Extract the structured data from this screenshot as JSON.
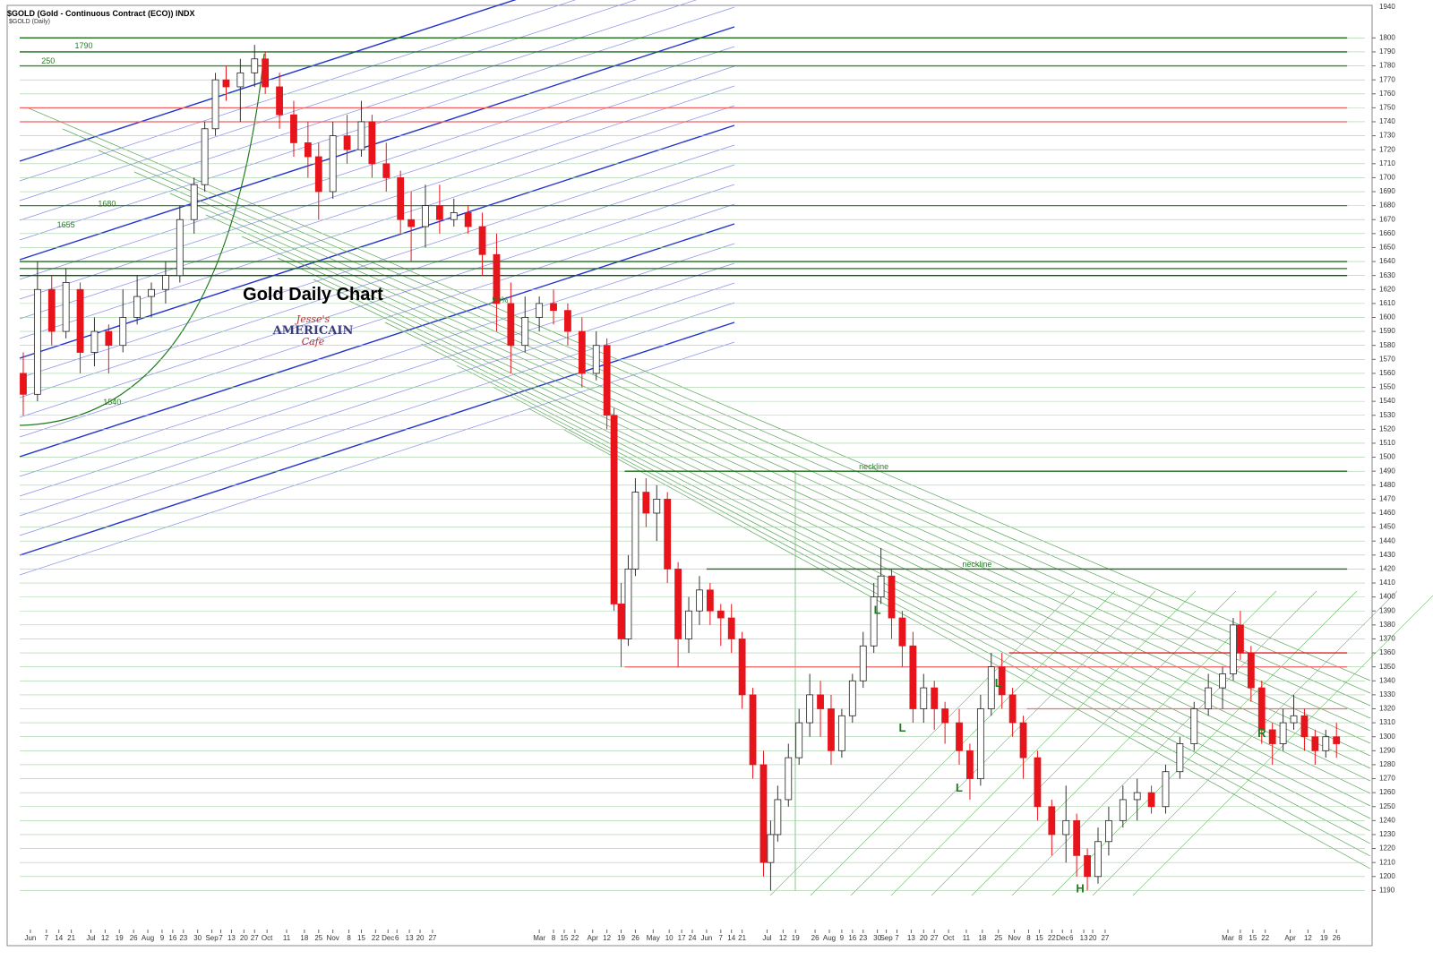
{
  "chart_data": {
    "type": "candlestick",
    "title": "Gold Daily Chart",
    "header": "$GOLD (Gold - Continuous Contract (ECO)) INDX",
    "subheader": "$GOLD (Daily)",
    "axis_top_label": "1940",
    "logo": [
      "Jesse's",
      "AMERICAIN",
      "Cafe"
    ],
    "up_color": "#ffffff",
    "down_color": "#e8141c",
    "xlim": [
      0,
      378
    ],
    "ylim": [
      1180,
      1822
    ],
    "yticks": [
      1190,
      1200,
      1210,
      1220,
      1230,
      1240,
      1250,
      1260,
      1270,
      1280,
      1290,
      1300,
      1310,
      1320,
      1330,
      1340,
      1350,
      1360,
      1370,
      1380,
      1390,
      1400,
      1410,
      1420,
      1430,
      1440,
      1450,
      1460,
      1470,
      1480,
      1490,
      1500,
      1510,
      1520,
      1530,
      1540,
      1550,
      1560,
      1570,
      1580,
      1590,
      1600,
      1610,
      1620,
      1630,
      1640,
      1650,
      1660,
      1670,
      1680,
      1690,
      1700,
      1710,
      1720,
      1730,
      1740,
      1750,
      1760,
      1770,
      1780,
      1790,
      1800
    ],
    "grid": true,
    "grid_color": "#9fd09f",
    "xticks": [
      {
        "value": 3,
        "label": "Jun"
      },
      {
        "value": 7.5,
        "label": "7"
      },
      {
        "value": 11,
        "label": "14"
      },
      {
        "value": 14.5,
        "label": "21"
      },
      {
        "value": 20,
        "label": "Jul"
      },
      {
        "value": 24,
        "label": "12"
      },
      {
        "value": 28,
        "label": "19"
      },
      {
        "value": 32,
        "label": "26"
      },
      {
        "value": 36,
        "label": "Aug"
      },
      {
        "value": 40,
        "label": "9"
      },
      {
        "value": 43,
        "label": "16"
      },
      {
        "value": 46,
        "label": "23"
      },
      {
        "value": 50,
        "label": "30"
      },
      {
        "value": 54,
        "label": "Sep"
      },
      {
        "value": 56.5,
        "label": "7"
      },
      {
        "value": 59.5,
        "label": "13"
      },
      {
        "value": 63,
        "label": "20"
      },
      {
        "value": 66,
        "label": "27"
      },
      {
        "value": 69.5,
        "label": "Oct"
      },
      {
        "value": 75,
        "label": "11"
      },
      {
        "value": 80,
        "label": "18"
      },
      {
        "value": 84,
        "label": "25"
      },
      {
        "value": 88,
        "label": "Nov"
      },
      {
        "value": 92.5,
        "label": "8"
      },
      {
        "value": 96,
        "label": "15"
      },
      {
        "value": 100,
        "label": "22"
      },
      {
        "value": 103.5,
        "label": "Dec"
      },
      {
        "value": 106,
        "label": "6"
      },
      {
        "value": 109.5,
        "label": "13"
      },
      {
        "value": 112.5,
        "label": "20"
      },
      {
        "value": 116,
        "label": "27"
      },
      {
        "value": 146,
        "label": "Mar"
      },
      {
        "value": 150,
        "label": "8"
      },
      {
        "value": 153,
        "label": "15"
      },
      {
        "value": 156,
        "label": "22"
      },
      {
        "value": 161,
        "label": "Apr"
      },
      {
        "value": 165,
        "label": "12"
      },
      {
        "value": 169,
        "label": "19"
      },
      {
        "value": 173,
        "label": "26"
      },
      {
        "value": 178,
        "label": "May"
      },
      {
        "value": 182.5,
        "label": "10"
      },
      {
        "value": 186,
        "label": "17"
      },
      {
        "value": 189,
        "label": "24"
      },
      {
        "value": 193,
        "label": "Jun"
      },
      {
        "value": 197,
        "label": "7"
      },
      {
        "value": 200,
        "label": "14"
      },
      {
        "value": 203,
        "label": "21"
      },
      {
        "value": 210,
        "label": "Jul"
      },
      {
        "value": 214.5,
        "label": "12"
      },
      {
        "value": 218,
        "label": "19"
      },
      {
        "value": 223.5,
        "label": "26"
      },
      {
        "value": 227.5,
        "label": "Aug"
      },
      {
        "value": 231,
        "label": "9"
      },
      {
        "value": 234,
        "label": "16"
      },
      {
        "value": 237,
        "label": "23"
      },
      {
        "value": 241,
        "label": "30"
      },
      {
        "value": 243.5,
        "label": "Sep"
      },
      {
        "value": 246.5,
        "label": "7"
      },
      {
        "value": 250.5,
        "label": "13"
      },
      {
        "value": 254,
        "label": "20"
      },
      {
        "value": 257,
        "label": "27"
      },
      {
        "value": 261,
        "label": "Oct"
      },
      {
        "value": 266,
        "label": "11"
      },
      {
        "value": 270.5,
        "label": "18"
      },
      {
        "value": 275,
        "label": "25"
      },
      {
        "value": 279.5,
        "label": "Nov"
      },
      {
        "value": 283.5,
        "label": "8"
      },
      {
        "value": 286.5,
        "label": "15"
      },
      {
        "value": 290,
        "label": "22"
      },
      {
        "value": 293,
        "label": "Dec"
      },
      {
        "value": 295.5,
        "label": "6"
      },
      {
        "value": 299,
        "label": "13"
      },
      {
        "value": 301.5,
        "label": "20"
      },
      {
        "value": 305,
        "label": "27"
      },
      {
        "value": 339.5,
        "label": "Mar"
      },
      {
        "value": 343,
        "label": "8"
      },
      {
        "value": 346.5,
        "label": "15"
      },
      {
        "value": 350,
        "label": "22"
      },
      {
        "value": 357,
        "label": "Apr"
      },
      {
        "value": 362,
        "label": "12"
      },
      {
        "value": 366.5,
        "label": "19"
      },
      {
        "value": 370,
        "label": "26"
      }
    ],
    "x": [
      1,
      5,
      9,
      13,
      17,
      21,
      25,
      29,
      33,
      37,
      41,
      45,
      49,
      52,
      55,
      58,
      62,
      66,
      69,
      73,
      77,
      81,
      84,
      88,
      92,
      96,
      99,
      103,
      107,
      110,
      114,
      118,
      122,
      126,
      130,
      134,
      138,
      142,
      146,
      150,
      154,
      158,
      162,
      165,
      167,
      169,
      171,
      173,
      176,
      179,
      182,
      185,
      188,
      191,
      194,
      197,
      200,
      203,
      206,
      209,
      211,
      213,
      216,
      219,
      222,
      225,
      228,
      231,
      234,
      237,
      240,
      242,
      245,
      248,
      251,
      254,
      257,
      260,
      264,
      267,
      270,
      273,
      276,
      279,
      282,
      286,
      290,
      294,
      297,
      300,
      303,
      306,
      310,
      314,
      318,
      322,
      326,
      330,
      334,
      338,
      341,
      343,
      346,
      349,
      352,
      355,
      358,
      361,
      364,
      367,
      370
    ],
    "open": [
      1560,
      1545,
      1620,
      1590,
      1620,
      1575,
      1590,
      1580,
      1600,
      1615,
      1620,
      1630,
      1670,
      1695,
      1735,
      1770,
      1765,
      1775,
      1785,
      1765,
      1745,
      1725,
      1715,
      1690,
      1730,
      1720,
      1740,
      1710,
      1700,
      1670,
      1665,
      1680,
      1670,
      1675,
      1665,
      1645,
      1610,
      1580,
      1600,
      1610,
      1605,
      1590,
      1560,
      1580,
      1530,
      1395,
      1370,
      1420,
      1475,
      1460,
      1470,
      1420,
      1370,
      1390,
      1405,
      1390,
      1385,
      1370,
      1330,
      1280,
      1210,
      1230,
      1255,
      1285,
      1310,
      1330,
      1320,
      1290,
      1315,
      1340,
      1365,
      1400,
      1415,
      1385,
      1365,
      1320,
      1335,
      1320,
      1310,
      1290,
      1270,
      1320,
      1350,
      1330,
      1310,
      1285,
      1250,
      1230,
      1240,
      1215,
      1200,
      1225,
      1240,
      1255,
      1260,
      1250,
      1275,
      1295,
      1320,
      1335,
      1345,
      1380,
      1360,
      1335,
      1305,
      1295,
      1310,
      1315,
      1300,
      1290,
      1300
    ],
    "high": [
      1575,
      1640,
      1630,
      1635,
      1625,
      1600,
      1595,
      1620,
      1630,
      1625,
      1640,
      1680,
      1700,
      1740,
      1775,
      1780,
      1785,
      1795,
      1790,
      1775,
      1755,
      1740,
      1725,
      1740,
      1745,
      1755,
      1745,
      1725,
      1705,
      1690,
      1695,
      1695,
      1685,
      1680,
      1675,
      1660,
      1625,
      1615,
      1615,
      1620,
      1610,
      1600,
      1590,
      1585,
      1535,
      1410,
      1430,
      1485,
      1485,
      1480,
      1475,
      1425,
      1400,
      1415,
      1410,
      1395,
      1395,
      1375,
      1335,
      1290,
      1240,
      1265,
      1295,
      1320,
      1345,
      1340,
      1330,
      1320,
      1345,
      1375,
      1410,
      1435,
      1420,
      1390,
      1375,
      1345,
      1340,
      1325,
      1320,
      1295,
      1330,
      1360,
      1360,
      1335,
      1315,
      1290,
      1255,
      1265,
      1245,
      1220,
      1235,
      1250,
      1265,
      1270,
      1265,
      1280,
      1300,
      1325,
      1345,
      1350,
      1385,
      1390,
      1365,
      1340,
      1310,
      1320,
      1330,
      1320,
      1305,
      1305,
      1310
    ],
    "low": [
      1530,
      1540,
      1580,
      1585,
      1560,
      1565,
      1560,
      1575,
      1595,
      1600,
      1610,
      1625,
      1660,
      1690,
      1730,
      1755,
      1740,
      1765,
      1760,
      1735,
      1715,
      1700,
      1670,
      1685,
      1710,
      1715,
      1700,
      1690,
      1660,
      1640,
      1650,
      1660,
      1665,
      1660,
      1630,
      1590,
      1560,
      1575,
      1590,
      1595,
      1580,
      1550,
      1555,
      1520,
      1390,
      1350,
      1365,
      1415,
      1450,
      1440,
      1410,
      1350,
      1360,
      1380,
      1380,
      1365,
      1360,
      1320,
      1270,
      1200,
      1190,
      1225,
      1250,
      1280,
      1300,
      1300,
      1280,
      1285,
      1310,
      1335,
      1360,
      1395,
      1370,
      1350,
      1310,
      1310,
      1305,
      1295,
      1280,
      1255,
      1265,
      1315,
      1320,
      1300,
      1270,
      1240,
      1215,
      1210,
      1200,
      1190,
      1195,
      1215,
      1235,
      1240,
      1245,
      1245,
      1270,
      1290,
      1315,
      1320,
      1340,
      1355,
      1325,
      1295,
      1280,
      1290,
      1305,
      1290,
      1280,
      1285,
      1285
    ],
    "close": [
      1545,
      1620,
      1590,
      1625,
      1575,
      1590,
      1580,
      1600,
      1615,
      1620,
      1630,
      1670,
      1695,
      1735,
      1770,
      1765,
      1775,
      1785,
      1765,
      1745,
      1725,
      1715,
      1690,
      1730,
      1720,
      1740,
      1710,
      1700,
      1670,
      1665,
      1680,
      1670,
      1675,
      1665,
      1645,
      1610,
      1580,
      1600,
      1610,
      1605,
      1590,
      1560,
      1580,
      1530,
      1395,
      1370,
      1420,
      1475,
      1460,
      1470,
      1420,
      1370,
      1390,
      1405,
      1390,
      1385,
      1370,
      1330,
      1280,
      1210,
      1230,
      1255,
      1285,
      1310,
      1330,
      1320,
      1290,
      1315,
      1340,
      1365,
      1400,
      1415,
      1385,
      1365,
      1320,
      1335,
      1320,
      1310,
      1290,
      1270,
      1320,
      1350,
      1330,
      1310,
      1285,
      1250,
      1230,
      1240,
      1215,
      1200,
      1225,
      1240,
      1255,
      1260,
      1250,
      1275,
      1295,
      1320,
      1335,
      1345,
      1380,
      1360,
      1335,
      1305,
      1295,
      1310,
      1315,
      1300,
      1290,
      1300,
      1295
    ],
    "hlines": [
      {
        "value": 1800,
        "color": "#1a6e1a",
        "x0": 0,
        "x1": 373
      },
      {
        "value": 1790,
        "color": "#1a6e1a",
        "x0": 0,
        "x1": 373
      },
      {
        "value": 1780,
        "color": "#2e8b2e",
        "x0": 0,
        "x1": 373
      },
      {
        "value": 1750,
        "color": "#f06060",
        "x0": 0,
        "x1": 373
      },
      {
        "value": 1740,
        "color": "#f06060",
        "x0": 0,
        "x1": 373
      },
      {
        "value": 1680,
        "color": "#2e8b2e",
        "x0": 0,
        "x1": 373
      },
      {
        "value": 1640,
        "color": "#1a6e1a",
        "x0": 0,
        "x1": 373
      },
      {
        "value": 1635,
        "color": "#1a6e1a",
        "x0": 0,
        "x1": 373
      },
      {
        "value": 1630,
        "color": "#0d5a0d",
        "x0": 0,
        "x1": 373
      },
      {
        "value": 1490,
        "color": "#1a6e1a",
        "x0": 170,
        "x1": 373
      },
      {
        "value": 1420,
        "color": "#1a6e1a",
        "x0": 193,
        "x1": 373
      },
      {
        "value": 1360,
        "color": "#e02020",
        "x0": 278,
        "x1": 373
      },
      {
        "value": 1350,
        "color": "#f07070",
        "x0": 170,
        "x1": 373
      },
      {
        "value": 1320,
        "color": "#f07070",
        "x0": 283,
        "x1": 373
      }
    ],
    "annotations": [
      {
        "text": "1790",
        "x": 18,
        "y": 1794,
        "color": "#2a7d2a"
      },
      {
        "text": "250",
        "x": 8,
        "y": 1783,
        "color": "#2a7d2a"
      },
      {
        "text": "1680",
        "x": 24.5,
        "y": 1681,
        "color": "#2a7d2a"
      },
      {
        "text": "1655",
        "x": 13,
        "y": 1666,
        "color": "#2a7d2a"
      },
      {
        "text": "1540",
        "x": 26,
        "y": 1539,
        "color": "#2a7d2a"
      },
      {
        "text": "50%",
        "x": 135,
        "y": 1612,
        "color": "#e02020"
      },
      {
        "text": "neckline",
        "x": 240,
        "y": 1493,
        "color": "#2a7d2a"
      },
      {
        "text": "neckline",
        "x": 269,
        "y": 1423,
        "color": "#2a7d2a"
      },
      {
        "text": "L",
        "x": 241,
        "y": 1390,
        "color": "#1f7a1f"
      },
      {
        "text": "L",
        "x": 248,
        "y": 1306,
        "color": "#1f7a1f"
      },
      {
        "text": "L",
        "x": 264,
        "y": 1263,
        "color": "#1f7a1f"
      },
      {
        "text": "L",
        "x": 275,
        "y": 1338,
        "color": "#1f7a1f"
      },
      {
        "text": "H",
        "x": 298,
        "y": 1191,
        "color": "#1f7a1f"
      },
      {
        "text": "R",
        "x": 349,
        "y": 1302,
        "color": "#1f7a1f"
      }
    ]
  }
}
